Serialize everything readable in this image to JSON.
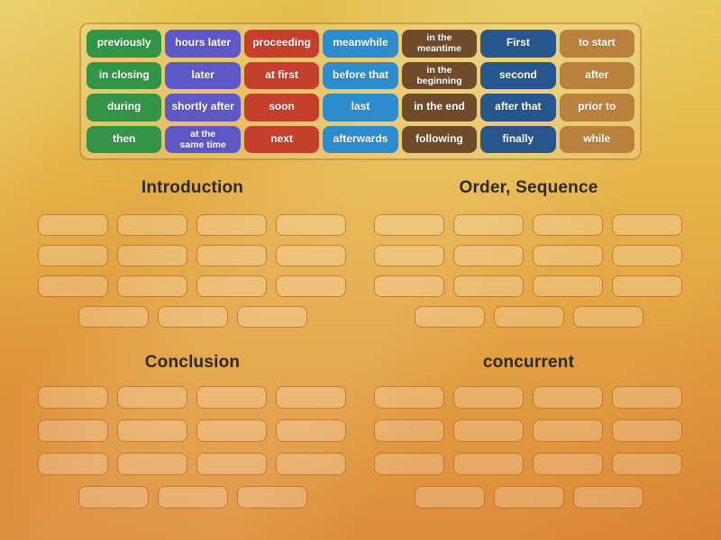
{
  "word_bank": {
    "items": [
      {
        "label": "previously",
        "color": "green"
      },
      {
        "label": "hours later",
        "color": "purple"
      },
      {
        "label": "proceeding",
        "color": "red"
      },
      {
        "label": "meanwhile",
        "color": "blue"
      },
      {
        "label": "in the\nmeantime",
        "color": "brown"
      },
      {
        "label": "First",
        "color": "navy"
      },
      {
        "label": "to start",
        "color": "tan"
      },
      {
        "label": "in closing",
        "color": "green"
      },
      {
        "label": "later",
        "color": "purple"
      },
      {
        "label": "at first",
        "color": "red"
      },
      {
        "label": "before that",
        "color": "blue"
      },
      {
        "label": "in the\nbeginning",
        "color": "brown"
      },
      {
        "label": "second",
        "color": "navy"
      },
      {
        "label": "after",
        "color": "tan"
      },
      {
        "label": "during",
        "color": "green"
      },
      {
        "label": "shortly after",
        "color": "purple"
      },
      {
        "label": "soon",
        "color": "red"
      },
      {
        "label": "last",
        "color": "blue"
      },
      {
        "label": "in the end",
        "color": "brown"
      },
      {
        "label": "after that",
        "color": "navy"
      },
      {
        "label": "prior to",
        "color": "tan"
      },
      {
        "label": "then",
        "color": "green"
      },
      {
        "label": "at the\nsame time",
        "color": "purple"
      },
      {
        "label": "next",
        "color": "red"
      },
      {
        "label": "afterwards",
        "color": "blue"
      },
      {
        "label": "following",
        "color": "brown"
      },
      {
        "label": "finally",
        "color": "navy"
      },
      {
        "label": "while",
        "color": "tan"
      }
    ]
  },
  "groups": [
    {
      "title": "Introduction",
      "slot_rows": [
        4,
        4,
        4,
        3
      ]
    },
    {
      "title": "Order, Sequence",
      "slot_rows": [
        4,
        4,
        4,
        3
      ]
    },
    {
      "title": "Conclusion",
      "slot_rows": [
        4,
        4,
        4,
        3
      ]
    },
    {
      "title": "concurrent",
      "slot_rows": [
        4,
        4,
        4,
        3
      ]
    }
  ],
  "colors": {
    "green": "#339447",
    "purple": "#5e57c6",
    "red": "#c4402c",
    "blue": "#2e8ccd",
    "brown": "#6f4b2a",
    "navy": "#28568c",
    "tan": "#b9813c",
    "background_top": "#e6c857",
    "background_bottom": "#dd8c38",
    "slot_border": "#bb551e",
    "heading_text": "#2e2a25"
  }
}
